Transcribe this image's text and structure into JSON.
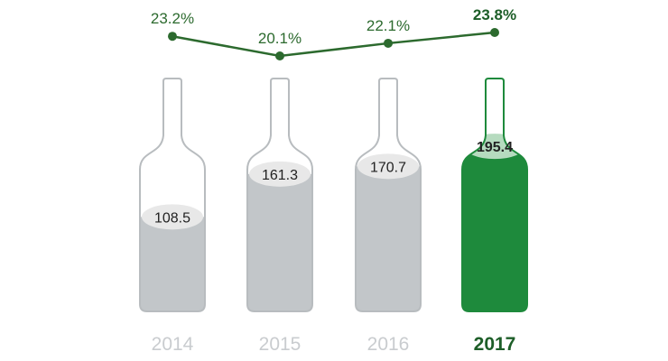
{
  "chart_data": [
    {
      "type": "bar",
      "categories": [
        "2014",
        "2015",
        "2016",
        "2017"
      ],
      "values": [
        108.5,
        161.3,
        170.7,
        195.4
      ],
      "value_labels": [
        "108.5",
        "161.3",
        "170.7",
        "195.4"
      ],
      "highlight_index": 3,
      "ylim": [
        0,
        230
      ],
      "title": "",
      "xlabel": "",
      "ylabel": ""
    },
    {
      "type": "line",
      "categories": [
        "2014",
        "2015",
        "2016",
        "2017"
      ],
      "values": [
        23.2,
        20.1,
        22.1,
        23.8
      ],
      "value_labels": [
        "23.2%",
        "20.1%",
        "22.1%",
        "23.8%"
      ],
      "highlight_index": 3,
      "ylim": [
        19.5,
        24.5
      ],
      "title": "",
      "xlabel": "",
      "ylabel": ""
    }
  ],
  "colors": {
    "accent_green": "#1e8a3c",
    "dark_green": "#1d5e28",
    "line_green": "#2c6a2e",
    "fill_grey": "#c2c6c9",
    "outline_grey": "#b8bcbf",
    "year_grey": "#c9cccf",
    "liquid_top": "#e8e8e8",
    "liquid_top_highlight": "#b6dbbf",
    "text_dark": "#222222"
  }
}
